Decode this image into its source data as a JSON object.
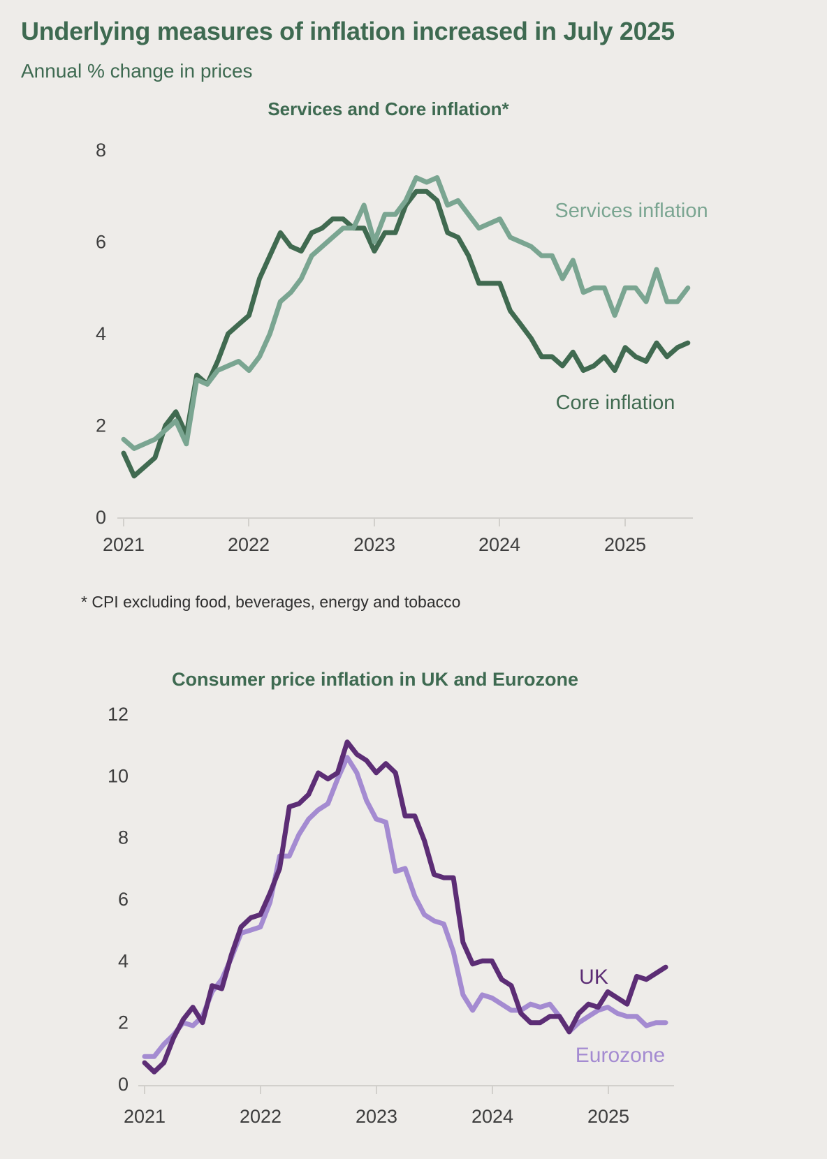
{
  "page": {
    "title": "Underlying measures of inflation increased in July 2025",
    "subtitle": "Annual % change in prices",
    "footnote": "* CPI excluding food, beverages, energy and tobacco",
    "background_color": "#eeece9",
    "title_color": "#3e6a51"
  },
  "chart_data": [
    {
      "type": "line",
      "title": "Services and Core inflation*",
      "x_tick_labels": [
        "2021",
        "2022",
        "2023",
        "2024",
        "2025"
      ],
      "y_ticks": [
        0,
        2,
        4,
        6,
        8
      ],
      "ylim": [
        0,
        8
      ],
      "x_range": [
        "Jan 2021",
        "Jul 2025"
      ],
      "x_frequency": "monthly",
      "grid": false,
      "legend_position": "inline-labels",
      "series": [
        {
          "name": "Services inflation",
          "color": "#7aa591",
          "values": [
            1.7,
            1.5,
            1.6,
            1.7,
            1.9,
            2.1,
            1.6,
            3.0,
            2.9,
            3.2,
            3.3,
            3.4,
            3.2,
            3.5,
            4.0,
            4.7,
            4.9,
            5.2,
            5.7,
            5.9,
            6.1,
            6.3,
            6.3,
            6.8,
            6.0,
            6.6,
            6.6,
            6.9,
            7.4,
            7.3,
            7.4,
            6.8,
            6.9,
            6.6,
            6.3,
            6.4,
            6.5,
            6.1,
            6.0,
            5.9,
            5.7,
            5.7,
            5.2,
            5.6,
            4.9,
            5.0,
            5.0,
            4.4,
            5.0,
            5.0,
            4.7,
            5.4,
            4.7,
            4.7,
            5.0
          ]
        },
        {
          "name": "Core inflation",
          "color": "#406a50",
          "values": [
            1.4,
            0.9,
            1.1,
            1.3,
            2.0,
            2.3,
            1.8,
            3.1,
            2.9,
            3.4,
            4.0,
            4.2,
            4.4,
            5.2,
            5.7,
            6.2,
            5.9,
            5.8,
            6.2,
            6.3,
            6.5,
            6.5,
            6.3,
            6.3,
            5.8,
            6.2,
            6.2,
            6.8,
            7.1,
            7.1,
            6.9,
            6.2,
            6.1,
            5.7,
            5.1,
            5.1,
            5.1,
            4.5,
            4.2,
            3.9,
            3.5,
            3.5,
            3.3,
            3.6,
            3.2,
            3.3,
            3.5,
            3.2,
            3.7,
            3.5,
            3.4,
            3.8,
            3.5,
            3.7,
            3.8
          ]
        }
      ]
    },
    {
      "type": "line",
      "title": "Consumer price inflation in UK and Eurozone",
      "x_tick_labels": [
        "2021",
        "2022",
        "2023",
        "2024",
        "2025"
      ],
      "y_ticks": [
        0,
        2,
        4,
        6,
        8,
        10,
        12
      ],
      "ylim": [
        0,
        12
      ],
      "x_range": [
        "Jan 2021",
        "Jul 2025"
      ],
      "x_frequency": "monthly",
      "grid": false,
      "legend_position": "inline-labels",
      "series": [
        {
          "name": "UK",
          "color": "#5c2d75",
          "values": [
            0.7,
            0.4,
            0.7,
            1.5,
            2.1,
            2.5,
            2.0,
            3.2,
            3.1,
            4.2,
            5.1,
            5.4,
            5.5,
            6.2,
            7.0,
            9.0,
            9.1,
            9.4,
            10.1,
            9.9,
            10.1,
            11.1,
            10.7,
            10.5,
            10.1,
            10.4,
            10.1,
            8.7,
            8.7,
            7.9,
            6.8,
            6.7,
            6.7,
            4.6,
            3.9,
            4.0,
            4.0,
            3.4,
            3.2,
            2.3,
            2.0,
            2.0,
            2.2,
            2.2,
            1.7,
            2.3,
            2.6,
            2.5,
            3.0,
            2.8,
            2.6,
            3.5,
            3.4,
            3.6,
            3.8
          ]
        },
        {
          "name": "Eurozone",
          "color": "#a48bd1",
          "values": [
            0.9,
            0.9,
            1.3,
            1.6,
            2.0,
            1.9,
            2.2,
            3.0,
            3.4,
            4.1,
            4.9,
            5.0,
            5.1,
            5.9,
            7.4,
            7.4,
            8.1,
            8.6,
            8.9,
            9.1,
            9.9,
            10.6,
            10.1,
            9.2,
            8.6,
            8.5,
            6.9,
            7.0,
            6.1,
            5.5,
            5.3,
            5.2,
            4.3,
            2.9,
            2.4,
            2.9,
            2.8,
            2.6,
            2.4,
            2.4,
            2.6,
            2.5,
            2.6,
            2.2,
            1.7,
            2.0,
            2.2,
            2.4,
            2.5,
            2.3,
            2.2,
            2.2,
            1.9,
            2.0,
            2.0
          ]
        }
      ]
    }
  ]
}
